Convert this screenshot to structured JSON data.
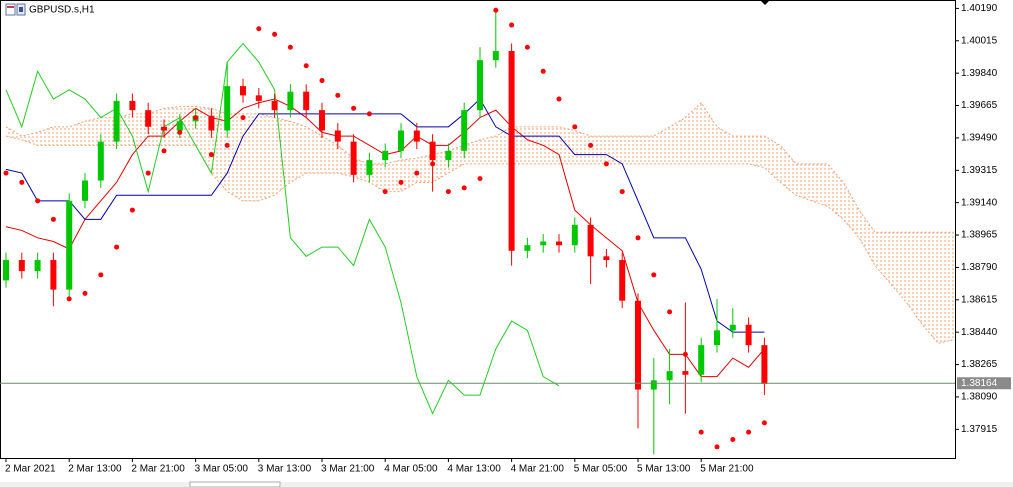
{
  "chart_data": {
    "type": "candlestick",
    "title": "GBPUSD.s,H1",
    "categories": [
      "2 Mar 2021",
      null,
      null,
      null,
      "2 Mar 13:00",
      null,
      null,
      null,
      "2 Mar 21:00",
      null,
      null,
      null,
      "3 Mar 05:00",
      null,
      null,
      null,
      "3 Mar 13:00",
      null,
      null,
      null,
      "3 Mar 21:00",
      null,
      null,
      null,
      "4 Mar 05:00",
      null,
      null,
      null,
      "4 Mar 13:00",
      null,
      null,
      null,
      "4 Mar 21:00",
      null,
      null,
      null,
      "5 Mar 05:00",
      null,
      null,
      null,
      "5 Mar 13:00",
      null,
      null,
      null,
      "5 Mar 21:00",
      null,
      null,
      null,
      null,
      null,
      null,
      null,
      null,
      null,
      null,
      null,
      null,
      null,
      null,
      null,
      null
    ],
    "candles": {
      "up_color": "#00c800",
      "down_color": "#ff0000",
      "open": [
        1.3872,
        1.3883,
        1.3877,
        1.3883,
        1.3867,
        1.3915,
        1.3926,
        1.3947,
        1.3969,
        1.3964,
        1.3955,
        1.3953,
        1.3958,
        1.3961,
        1.3953,
        1.3977,
        1.3972,
        1.3969,
        1.3964,
        1.3974,
        1.3964,
        1.3953,
        1.3947,
        1.3929,
        1.3937,
        1.3942,
        1.3953,
        1.3947,
        1.3937,
        1.3942,
        1.3964,
        1.3991,
        1.3996,
        1.3888,
        1.3891,
        1.3893,
        1.3891,
        1.3902,
        1.3885,
        1.3883,
        1.3861,
        1.3813,
        1.3818,
        1.3823,
        1.3821,
        1.3837,
        1.3845,
        1.3848,
        1.3837,
        null,
        null,
        null,
        null,
        null,
        null,
        null,
        null,
        null,
        null,
        null,
        null
      ],
      "high": [
        1.3887,
        1.3887,
        1.3887,
        1.3887,
        1.3919,
        1.393,
        1.3951,
        1.3973,
        1.3973,
        1.3968,
        1.3959,
        1.3962,
        1.3965,
        1.3965,
        1.399,
        1.3981,
        1.3976,
        1.3973,
        1.3978,
        1.3978,
        1.3968,
        1.3957,
        1.3951,
        1.3941,
        1.3946,
        1.3957,
        1.3957,
        1.3951,
        1.3946,
        1.3968,
        1.3998,
        1.4017,
        1.4,
        1.3895,
        1.3897,
        1.3897,
        1.3906,
        1.3906,
        1.3889,
        1.3887,
        1.3865,
        1.383,
        1.3835,
        1.386,
        1.3841,
        1.3862,
        1.3857,
        1.3852,
        1.3841,
        null,
        null,
        null,
        null,
        null,
        null,
        null,
        null,
        null,
        null,
        null,
        null
      ],
      "low": [
        1.3868,
        1.3873,
        1.3873,
        1.3858,
        1.3863,
        1.3911,
        1.3922,
        1.3943,
        1.396,
        1.3951,
        1.3949,
        1.3949,
        1.3954,
        1.3949,
        1.3949,
        1.3968,
        1.3965,
        1.396,
        1.396,
        1.396,
        1.3949,
        1.3943,
        1.3925,
        1.3925,
        1.3933,
        1.3938,
        1.3943,
        1.392,
        1.3933,
        1.3938,
        1.396,
        1.3987,
        1.388,
        1.3884,
        1.3887,
        1.3887,
        1.3887,
        1.387,
        1.3879,
        1.3857,
        1.3792,
        1.3778,
        1.3805,
        1.38,
        1.3817,
        1.3833,
        1.3841,
        1.3833,
        1.381,
        null,
        null,
        null,
        null,
        null,
        null,
        null,
        null,
        null,
        null,
        null,
        null
      ],
      "close": [
        1.3883,
        1.3877,
        1.3883,
        1.3867,
        1.3915,
        1.3926,
        1.3947,
        1.3969,
        1.3964,
        1.3955,
        1.3953,
        1.3958,
        1.3961,
        1.3953,
        1.3977,
        1.3972,
        1.3969,
        1.3964,
        1.3974,
        1.3964,
        1.3953,
        1.3947,
        1.3929,
        1.3937,
        1.3942,
        1.3953,
        1.3947,
        1.3937,
        1.3942,
        1.3964,
        1.3991,
        1.3996,
        1.3888,
        1.3891,
        1.3893,
        1.3891,
        1.3902,
        1.3885,
        1.3883,
        1.3861,
        1.3813,
        1.3818,
        1.3823,
        1.3821,
        1.3837,
        1.3845,
        1.3848,
        1.3837,
        1.3816,
        null,
        null,
        null,
        null,
        null,
        null,
        null,
        null,
        null,
        null,
        null,
        null
      ]
    },
    "cloud": {
      "color": "#f0a070",
      "upper": [
        1.3955,
        1.395,
        1.3952,
        1.3955,
        1.3955,
        1.3958,
        1.396,
        1.396,
        1.3962,
        1.3962,
        1.3965,
        1.3966,
        1.3966,
        1.3965,
        1.3962,
        1.3962,
        1.3962,
        1.396,
        1.3958,
        1.3955,
        1.395,
        1.3945,
        1.3938,
        1.3935,
        1.3935,
        1.3937,
        1.3938,
        1.394,
        1.3942,
        1.3945,
        1.3948,
        1.395,
        1.3955,
        1.3955,
        1.3955,
        1.3955,
        1.3953,
        1.395,
        1.395,
        1.395,
        1.395,
        1.395,
        1.3955,
        1.396,
        1.3968,
        1.3955,
        1.395,
        1.395,
        1.395,
        1.3945,
        1.3935,
        1.3935,
        1.3935,
        1.3925,
        1.391,
        1.3898,
        1.3898,
        1.3898,
        1.3898,
        1.3898,
        1.3898
      ],
      "lower": [
        1.395,
        1.3948,
        1.3945,
        1.3945,
        1.3945,
        1.3945,
        1.3945,
        1.3945,
        1.3945,
        1.3945,
        1.3945,
        1.3945,
        1.3945,
        1.393,
        1.392,
        1.3915,
        1.3915,
        1.3918,
        1.3925,
        1.393,
        1.393,
        1.393,
        1.3928,
        1.3925,
        1.392,
        1.392,
        1.3925,
        1.3925,
        1.393,
        1.3935,
        1.3935,
        1.3935,
        1.3935,
        1.3935,
        1.3935,
        1.3935,
        1.3935,
        1.3935,
        1.3935,
        1.3935,
        1.3935,
        1.3935,
        1.3935,
        1.3935,
        1.3935,
        1.3935,
        1.3935,
        1.3935,
        1.3933,
        1.3925,
        1.3918,
        1.3915,
        1.3912,
        1.3905,
        1.3895,
        1.388,
        1.387,
        1.386,
        1.3848,
        1.3838,
        1.384
      ]
    },
    "lines": [
      {
        "color": "#e00000",
        "values": [
          1.3901,
          1.3899,
          1.3895,
          1.3893,
          1.3889,
          1.3905,
          1.3915,
          1.3925,
          1.394,
          1.395,
          1.395,
          1.3958,
          1.3965,
          1.396,
          1.3958,
          1.3965,
          1.3968,
          1.397,
          1.3966,
          1.396,
          1.3952,
          1.395,
          1.395,
          1.3945,
          1.394,
          1.3942,
          1.395,
          1.3945,
          1.3945,
          1.3952,
          1.396,
          1.3964,
          1.3955,
          1.3948,
          1.3945,
          1.394,
          1.391,
          1.3902,
          1.3895,
          1.3888,
          1.386,
          1.3845,
          1.3832,
          1.3832,
          1.382,
          1.382,
          1.383,
          1.3825,
          1.3835,
          null,
          null,
          null,
          null,
          null,
          null,
          null,
          null,
          null,
          null,
          null,
          null
        ]
      },
      {
        "color": "#0000b0",
        "values": [
          1.3932,
          1.393,
          1.3915,
          1.3915,
          1.3915,
          1.3905,
          1.3905,
          1.3918,
          1.3918,
          1.3918,
          1.3918,
          1.3918,
          1.3918,
          1.3918,
          1.393,
          1.395,
          1.3962,
          1.3962,
          1.3962,
          1.3962,
          1.3962,
          1.3962,
          1.3962,
          1.3962,
          1.3962,
          1.3962,
          1.3955,
          1.3955,
          1.3955,
          1.3962,
          1.397,
          1.3955,
          1.395,
          1.395,
          1.395,
          1.395,
          1.394,
          1.394,
          1.394,
          1.3935,
          1.3915,
          1.3895,
          1.3895,
          1.3895,
          1.3878,
          1.385,
          1.3844,
          1.3844,
          1.3844,
          null,
          null,
          null,
          null,
          null,
          null,
          null,
          null,
          null,
          null,
          null,
          null
        ]
      },
      {
        "color": "#22cc22",
        "values": [
          1.3975,
          1.3955,
          1.3985,
          1.397,
          1.3975,
          1.397,
          1.396,
          1.3965,
          1.395,
          1.392,
          1.3955,
          1.396,
          1.3945,
          1.393,
          1.399,
          1.4,
          1.399,
          1.3975,
          1.3895,
          1.3885,
          1.389,
          1.389,
          1.388,
          1.3905,
          1.389,
          1.386,
          1.382,
          1.38,
          1.3818,
          1.381,
          1.381,
          1.3835,
          1.385,
          1.3845,
          1.382,
          1.3815,
          null,
          null,
          null,
          null,
          null,
          null,
          null,
          null,
          null,
          null,
          null,
          null,
          null,
          null,
          null,
          null,
          null,
          null,
          null,
          null,
          null,
          null,
          null,
          null,
          null
        ]
      }
    ],
    "sar": {
      "color": "#ff0000",
      "values": [
        1.393,
        1.3925,
        1.3915,
        1.3905,
        1.3862,
        1.3865,
        1.3875,
        1.389,
        1.391,
        1.393,
        1.3942,
        1.3952,
        1.396,
        1.394,
        1.3945,
        1.396,
        1.4008,
        1.4005,
        1.3998,
        1.3988,
        1.398,
        1.3972,
        1.3965,
        1.3962,
        1.392,
        1.3925,
        1.393,
        1.3935,
        1.392,
        1.3922,
        1.3927,
        1.4018,
        1.401,
        1.3998,
        1.3985,
        1.397,
        1.3955,
        1.3945,
        1.3935,
        1.392,
        1.3895,
        1.3875,
        1.3855,
        1.3832,
        1.379,
        1.3782,
        1.3786,
        1.379,
        1.3795,
        null,
        null,
        null,
        null,
        null,
        null,
        null,
        null,
        null,
        null,
        null,
        null
      ]
    },
    "current_price": {
      "value": 1.38164,
      "label": "1.38164",
      "color": "#6a8f6a"
    },
    "ylim": [
      1.3776,
      1.4023
    ],
    "yticks": [
      {
        "value": 1.4019,
        "label": "1.40190"
      },
      {
        "value": 1.40015,
        "label": "1.40015"
      },
      {
        "value": 1.3984,
        "label": "1.39840"
      },
      {
        "value": 1.39665,
        "label": "1.39665"
      },
      {
        "value": 1.3949,
        "label": "1.39490"
      },
      {
        "value": 1.39315,
        "label": "1.39315"
      },
      {
        "value": 1.3914,
        "label": "1.39140"
      },
      {
        "value": 1.38965,
        "label": "1.38965"
      },
      {
        "value": 1.3879,
        "label": "1.38790"
      },
      {
        "value": 1.38615,
        "label": "1.38615"
      },
      {
        "value": 1.3844,
        "label": "1.38440"
      },
      {
        "value": 1.38265,
        "label": "1.38265"
      },
      {
        "value": 1.3809,
        "label": "1.38090"
      },
      {
        "value": 1.37915,
        "label": "1.37915"
      }
    ]
  }
}
